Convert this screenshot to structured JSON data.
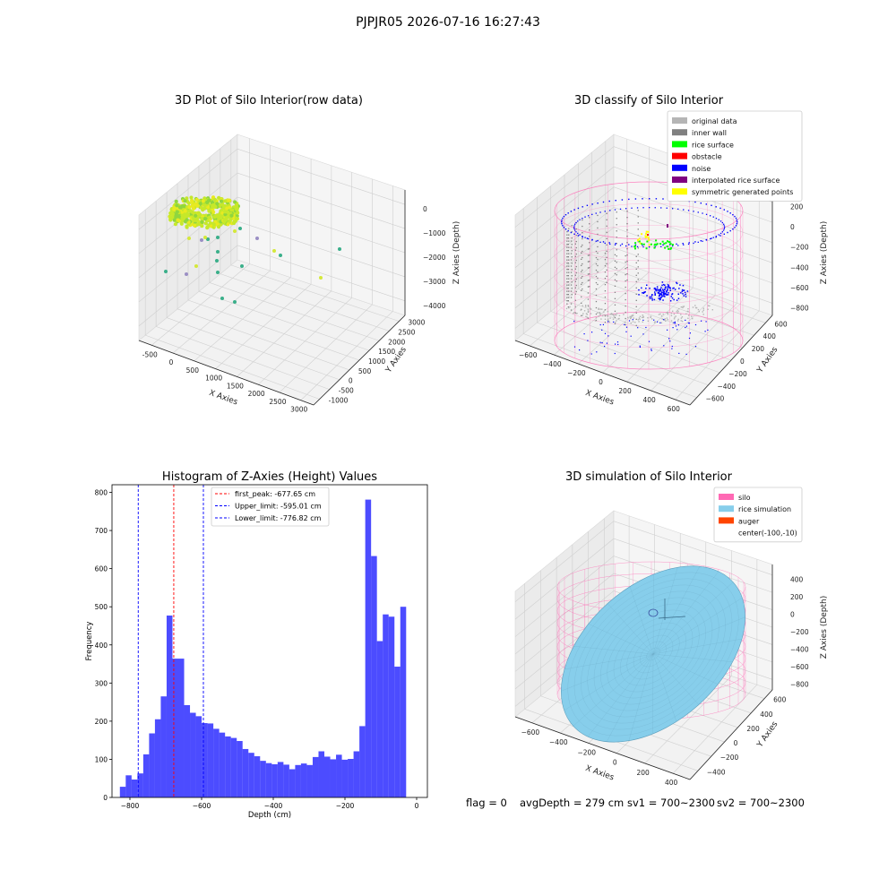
{
  "suptitle": "PJPJR05 2026-07-16 16:27:43",
  "footer": {
    "flag": "flag = 0",
    "avg_depth": "avgDepth = 279 cm",
    "sv1": "sv1 = 700~2300",
    "sv2": "sv2 = 700~2300"
  },
  "chart_data": [
    {
      "type": "scatter",
      "title": "3D Plot of Silo Interior(row data)",
      "xlabel": "X Axies",
      "ylabel": "Y Axies",
      "zlabel": "Z Axies (Depth)",
      "x_ticks": [
        "-500",
        "0",
        "500",
        "1000",
        "1500",
        "2000",
        "2500",
        "3000"
      ],
      "y_ticks": [
        "-1000",
        "-500",
        "0",
        "500",
        "1000",
        "1500",
        "2000",
        "2500",
        "3000"
      ],
      "z_ticks": [
        "0",
        "−1000",
        "−2000",
        "−3000",
        "−4000"
      ],
      "colors": {
        "cluster": "#c6e82a",
        "cluster_dark": "#8fd63f",
        "outlier": "#3aaf8a"
      },
      "grid": true
    },
    {
      "type": "scatter",
      "title": "3D classify of Silo Interior",
      "xlabel": "X Axies",
      "ylabel": "Y Axies",
      "zlabel": "Z Axies (Depth)",
      "x_ticks": [
        "−600",
        "−400",
        "−200",
        "0",
        "200",
        "400",
        "600"
      ],
      "y_ticks": [
        "−600",
        "−400",
        "−200",
        "0",
        "200",
        "400",
        "600"
      ],
      "z_ticks": [
        "200",
        "0",
        "−200",
        "−400",
        "−600",
        "−800"
      ],
      "z_top_partial": "00",
      "legend": [
        {
          "label": "original data",
          "color": "#b5b5b5"
        },
        {
          "label": "inner wall",
          "color": "#808080"
        },
        {
          "label": "rice surface",
          "color": "#00ff00"
        },
        {
          "label": "obstacle",
          "color": "#ff0000"
        },
        {
          "label": "noise",
          "color": "#0000ff"
        },
        {
          "label": "interpolated rice surface",
          "color": "#800080"
        },
        {
          "label": "symmetric generated points",
          "color": "#ffff00"
        }
      ],
      "colors": {
        "silo_mesh": "#ff69b4"
      },
      "legend_loc": "upper right",
      "grid": true
    },
    {
      "type": "bar",
      "title": "Histogram of Z-Axies (Height) Values",
      "xlabel": "Depth (cm)",
      "ylabel": "Frequency",
      "xlim": [
        -850,
        30
      ],
      "ylim": [
        0,
        820
      ],
      "x_ticks": [
        -800,
        -600,
        -400,
        -200,
        0
      ],
      "x_tick_labels": [
        "−800",
        "−600",
        "−400",
        "−200",
        "0"
      ],
      "y_ticks": [
        0,
        100,
        200,
        300,
        400,
        500,
        600,
        700,
        800
      ],
      "bin_start": -828,
      "bin_width": 16.3,
      "values": [
        28,
        58,
        47,
        63,
        113,
        168,
        205,
        265,
        477,
        364,
        364,
        242,
        222,
        213,
        195,
        194,
        180,
        170,
        160,
        156,
        148,
        127,
        117,
        108,
        96,
        90,
        87,
        93,
        86,
        74,
        85,
        89,
        85,
        106,
        121,
        107,
        100,
        112,
        99,
        101,
        121,
        187,
        781,
        633,
        410,
        480,
        474,
        343,
        500
      ],
      "bar_color": "#0000ff",
      "lines": [
        {
          "label": "first_peak: -677.65 cm",
          "x": -677.65,
          "color": "#ff0000"
        },
        {
          "label": "Upper_limit: -595.01 cm",
          "x": -595.01,
          "color": "#0000ff"
        },
        {
          "label": "Lower_limit: -776.82 cm",
          "x": -776.82,
          "color": "#0000ff"
        }
      ],
      "legend_loc": "upper left"
    },
    {
      "type": "area",
      "title": "3D simulation of Silo Interior",
      "xlabel": "X Axies",
      "ylabel": "Y Axies",
      "zlabel": "Z Axies (Depth)",
      "x_ticks": [
        "−600",
        "−400",
        "−200",
        "0",
        "200",
        "400"
      ],
      "y_ticks": [
        "−400",
        "−200",
        "0",
        "200",
        "400",
        "600"
      ],
      "z_ticks": [
        "400",
        "200",
        "0",
        "−200",
        "−400",
        "−600",
        "−800"
      ],
      "legend": [
        {
          "label": "silo",
          "color": "#ff69b4"
        },
        {
          "label": "rice simulation",
          "color": "#87ceeb"
        },
        {
          "label": "auger",
          "color": "#ff4500"
        },
        {
          "label": "center(-100,-10)",
          "color": ""
        }
      ],
      "legend_loc": "upper right",
      "grid": true
    }
  ]
}
